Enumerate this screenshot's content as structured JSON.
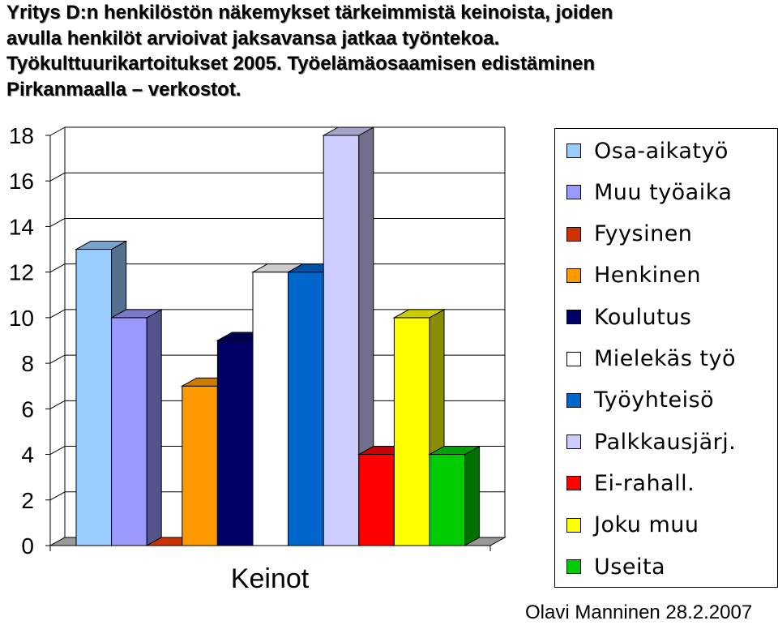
{
  "chart_data": {
    "type": "bar",
    "title_lines": [
      "Yritys D:n henkilöstön näkemykset tärkeimmistä keinoista, joiden",
      "avulla henkilöt arvioivat jaksavansa jatkaa työntekoa.",
      "Työkulttuurikartoitukset 2005. Työelämäosaamisen edistäminen",
      "Pirkanmaalla – verkostot."
    ],
    "xlabel": "Keinot",
    "ylabel": "",
    "ylim": [
      0,
      18
    ],
    "yticks": [
      "0",
      "2",
      "4",
      "6",
      "8",
      "10",
      "12",
      "14",
      "16",
      "18"
    ],
    "grid": true,
    "legend_position": "right",
    "series": [
      {
        "name": "Osa-aikatyö",
        "value": 13,
        "color": "#99CCFF"
      },
      {
        "name": "Muu työaika",
        "value": 10,
        "color": "#9999FF"
      },
      {
        "name": "Fyysinen",
        "value": 0,
        "color": "#CC3300"
      },
      {
        "name": "Henkinen",
        "value": 7,
        "color": "#FF9900"
      },
      {
        "name": "Koulutus",
        "value": 9,
        "color": "#000066"
      },
      {
        "name": "Mielekäs työ",
        "value": 12,
        "color": "#FFFFFF"
      },
      {
        "name": "Työyhteisö",
        "value": 12,
        "color": "#0066CC"
      },
      {
        "name": "Palkkausjärj.",
        "value": 18,
        "color": "#CCCCFF"
      },
      {
        "name": "Ei-rahall.",
        "value": 4,
        "color": "#FF0000"
      },
      {
        "name": "Joku muu",
        "value": 10,
        "color": "#FFFF00"
      },
      {
        "name": "Useita",
        "value": 4,
        "color": "#00CC00"
      }
    ]
  },
  "footer": {
    "credit": "Olavi Manninen 28.2.2007"
  }
}
